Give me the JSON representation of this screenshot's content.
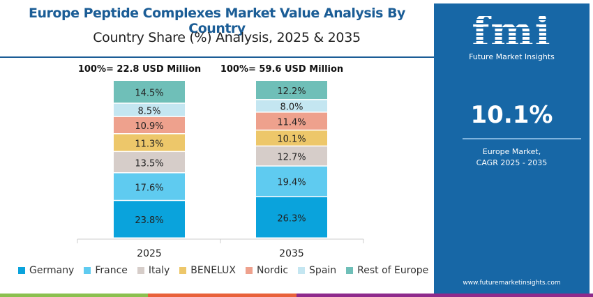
{
  "header": {
    "title": "Europe Peptide Complexes Market Value Analysis By Country",
    "subtitle": "Country Share (%) Analysis, 2025 & 2035"
  },
  "panel": {
    "logo": "fmi",
    "logo_sub": "Future Market Insights",
    "cagr_value": "10.1%",
    "cagr_label_1": "Europe Market,",
    "cagr_label_2": "CAGR 2025 - 2035",
    "url": "www.futuremarketinsights.com"
  },
  "chart_data": {
    "type": "bar",
    "stacked": true,
    "percent": true,
    "categories": [
      "2025",
      "2035"
    ],
    "totals": [
      "100%= 22.8 USD Million",
      "100%= 59.6 USD Million"
    ],
    "series": [
      {
        "name": "Germany",
        "color": "#0aa3dc",
        "values": [
          23.8,
          26.3
        ],
        "labels": [
          "23.8%",
          "26.3%"
        ]
      },
      {
        "name": "France",
        "color": "#5fcbf0",
        "values": [
          17.6,
          19.4
        ],
        "labels": [
          "17.6%",
          "19.4%"
        ]
      },
      {
        "name": "Italy",
        "color": "#d6cdc9",
        "values": [
          13.5,
          12.7
        ],
        "labels": [
          "13.5%",
          "12.7%"
        ]
      },
      {
        "name": "BENELUX",
        "color": "#edc76a",
        "values": [
          11.3,
          10.1
        ],
        "labels": [
          "11.3%",
          "10.1%"
        ]
      },
      {
        "name": "Nordic",
        "color": "#eea18d",
        "values": [
          10.9,
          11.4
        ],
        "labels": [
          "10.9%",
          "11.4%"
        ]
      },
      {
        "name": "Spain",
        "color": "#c4e6f1",
        "values": [
          8.5,
          8.0
        ],
        "labels": [
          "8.5%",
          "8.0%"
        ]
      },
      {
        "name": "Rest of Europe",
        "color": "#6fbfb8",
        "values": [
          14.5,
          12.2
        ],
        "labels": [
          "14.5%",
          "12.2%"
        ]
      }
    ],
    "legend_position": "bottom",
    "grid": false
  },
  "colors": {
    "brand": "#1767a6",
    "title": "#1b5d96",
    "stripes": [
      "#8bc04f",
      "#e8613a",
      "#8e2a8c"
    ]
  }
}
